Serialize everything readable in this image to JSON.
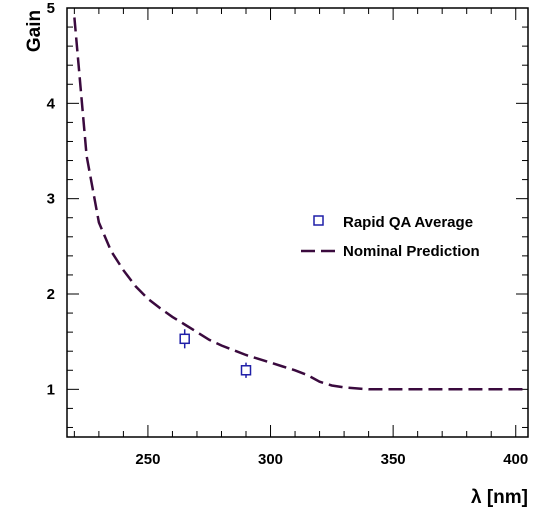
{
  "chart_data": {
    "type": "line",
    "title": "",
    "xlabel": "λ [nm]",
    "ylabel": "Gain",
    "xlim": [
      217,
      405
    ],
    "ylim": [
      0.5,
      5.0
    ],
    "x_ticks": [
      250,
      300,
      350,
      400
    ],
    "y_ticks": [
      1,
      2,
      3,
      4,
      5
    ],
    "x_tick_labels": [
      "250",
      "300",
      "350",
      "400"
    ],
    "y_tick_labels": [
      "1",
      "2",
      "3",
      "4",
      "5"
    ],
    "grid": false,
    "legend_position": "right",
    "series": [
      {
        "name": "Rapid QA Average",
        "kind": "points",
        "marker": "open-square",
        "color": "#1f1fa8",
        "x": [
          265,
          290
        ],
        "y": [
          1.53,
          1.2
        ],
        "y_err": [
          0.1,
          0.08
        ]
      },
      {
        "name": "Nominal Prediction",
        "kind": "line",
        "style": "dashed",
        "color": "#3a0a3e",
        "x": [
          220,
          225,
          230,
          235,
          240,
          245,
          250,
          255,
          260,
          265,
          270,
          275,
          280,
          285,
          290,
          295,
          300,
          305,
          310,
          315,
          320,
          325,
          330,
          335,
          340,
          350,
          360,
          370,
          380,
          390,
          400,
          405
        ],
        "y": [
          4.9,
          3.45,
          2.75,
          2.45,
          2.25,
          2.08,
          1.95,
          1.85,
          1.76,
          1.68,
          1.6,
          1.52,
          1.46,
          1.41,
          1.36,
          1.32,
          1.28,
          1.24,
          1.2,
          1.15,
          1.08,
          1.04,
          1.02,
          1.01,
          1.0,
          1.0,
          1.0,
          1.0,
          1.0,
          1.0,
          1.0,
          1.0
        ]
      }
    ]
  }
}
